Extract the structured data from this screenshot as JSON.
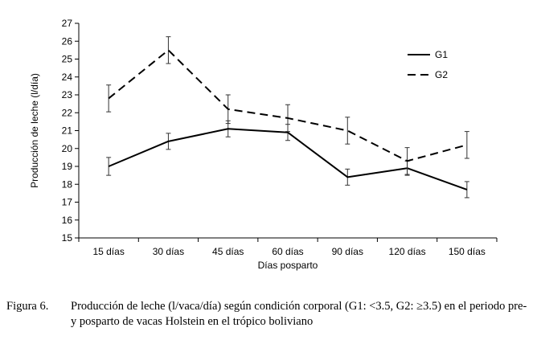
{
  "chart_data": {
    "type": "line",
    "categories": [
      "15 días",
      "30 días",
      "45 días",
      "60 días",
      "90 días",
      "120 días",
      "150 días"
    ],
    "series": [
      {
        "name": "G1",
        "style": "solid",
        "values": [
          19.0,
          20.4,
          21.1,
          20.9,
          18.4,
          18.9,
          17.7
        ],
        "error": [
          0.5,
          0.45,
          0.45,
          0.45,
          0.45,
          0.4,
          0.45
        ]
      },
      {
        "name": "G2",
        "style": "dashed",
        "values": [
          22.8,
          25.5,
          22.2,
          21.7,
          21.0,
          19.3,
          20.2
        ],
        "error": [
          0.75,
          0.75,
          0.8,
          0.75,
          0.75,
          0.75,
          0.75
        ]
      }
    ],
    "xlabel": "Días posparto",
    "ylabel": "Producción de leche (l/día)",
    "ylim": [
      15,
      27
    ],
    "yticks": [
      15,
      16,
      17,
      18,
      19,
      20,
      21,
      22,
      23,
      24,
      25,
      26,
      27
    ],
    "grid": false,
    "legend_position": "top-right"
  },
  "caption": {
    "label": "Figura 6.",
    "text": "Producción de leche (l/vaca/día) según condición corporal (G1: <3.5, G2: ≥3.5) en el periodo pre-y posparto de vacas Holstein en el trópico boliviano"
  }
}
